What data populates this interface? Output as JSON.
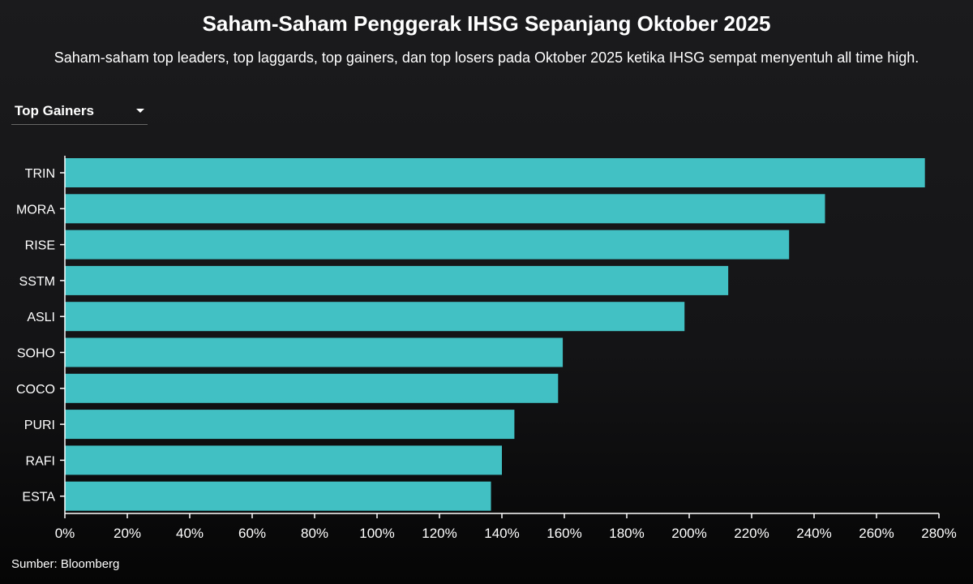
{
  "header": {
    "title": "Saham-Saham Penggerak IHSG Sepanjang Oktober 2025",
    "subtitle": "Saham-saham top leaders, top laggards, top gainers, dan top losers pada Oktober 2025 ketika IHSG sempat menyentuh all time high."
  },
  "dropdown": {
    "selected": "Top Gainers",
    "icon": "caret-down-icon"
  },
  "footer": {
    "source": "Sumber: Bloomberg"
  },
  "colors": {
    "bar": "#45cacd",
    "axis": "#ffffff",
    "background": "#111113"
  },
  "chart_data": {
    "type": "bar",
    "orientation": "horizontal",
    "title": "Saham-Saham Penggerak IHSG Sepanjang Oktober 2025",
    "categories": [
      "TRIN",
      "MORA",
      "RISE",
      "SSTM",
      "ASLI",
      "SOHO",
      "COCO",
      "PURI",
      "RAFI",
      "ESTA"
    ],
    "values": [
      275.5,
      243.5,
      232,
      212.5,
      198.5,
      159.5,
      158,
      144,
      140,
      136.5
    ],
    "unit": "%",
    "xlim": [
      0,
      280
    ],
    "xticks": [
      "0%",
      "20%",
      "40%",
      "60%",
      "80%",
      "100%",
      "120%",
      "140%",
      "160%",
      "180%",
      "200%",
      "220%",
      "240%",
      "260%",
      "280%"
    ],
    "xlabel": "",
    "ylabel": "",
    "grid": false,
    "legend": "none"
  }
}
